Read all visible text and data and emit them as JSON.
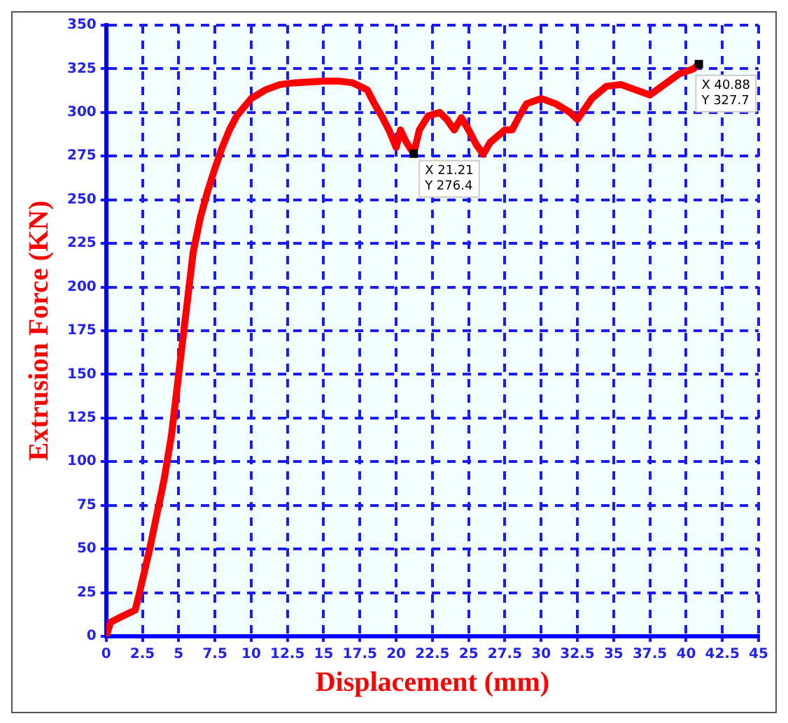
{
  "chart_data": {
    "type": "line",
    "xlabel": "Displacement (mm)",
    "ylabel": "Extrusion Force (KN)",
    "xlim": [
      0,
      45
    ],
    "xticks": [
      0,
      2.5,
      5,
      7.5,
      10,
      12.5,
      15,
      17.5,
      20,
      22.5,
      25,
      27.5,
      30,
      32.5,
      35,
      37.5,
      40,
      42.5,
      45
    ],
    "ylim": [
      0,
      350
    ],
    "yticks": [
      0,
      25,
      50,
      75,
      100,
      125,
      150,
      175,
      200,
      225,
      250,
      275,
      300,
      325,
      350
    ],
    "grid": true,
    "legend": false,
    "marker": "none",
    "line_style": "solid",
    "series": [
      {
        "color": "#ff0000",
        "x": [
          0,
          0.3,
          1,
          2,
          2.3,
          3,
          3.5,
          4,
          4.5,
          5,
          5.5,
          6,
          6.5,
          7,
          7.5,
          8,
          8.5,
          9,
          10,
          11,
          12,
          13,
          15,
          16,
          17,
          18,
          18.5,
          19,
          19.5,
          20,
          20.3,
          20.7,
          21.21,
          21.6,
          22.2,
          23,
          23.5,
          24,
          24.5,
          25,
          25.5,
          26,
          26.5,
          27.5,
          28,
          28.5,
          29,
          30,
          31,
          32,
          32.5,
          33.5,
          34.5,
          35.5,
          36.5,
          37.5,
          38.5,
          39.5,
          40.5,
          40.88
        ],
        "values": [
          0,
          8,
          11,
          15,
          25,
          50,
          70,
          90,
          115,
          150,
          185,
          220,
          240,
          255,
          268,
          280,
          290,
          298,
          308,
          313,
          316,
          317,
          318,
          318,
          317,
          313,
          305,
          298,
          290,
          280,
          290,
          283,
          276.4,
          290,
          298,
          300,
          296,
          290,
          297,
          290,
          282,
          276,
          283,
          290,
          290,
          298,
          305,
          308,
          305,
          300,
          296,
          308,
          315,
          316,
          313,
          310,
          316,
          322,
          325,
          327.7
        ]
      }
    ],
    "annotations": [
      {
        "text": "X 21.21\nY 276.4",
        "x": 21.21,
        "y": 276.4
      },
      {
        "text": "X 40.88\nY 327.7",
        "x": 40.88,
        "y": 327.7
      }
    ]
  }
}
